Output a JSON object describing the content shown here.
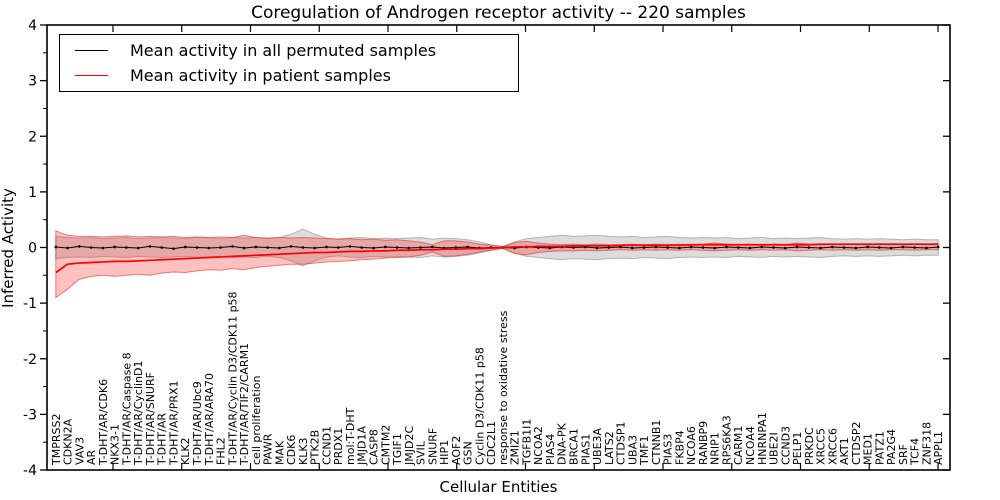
{
  "title": "Coregulation of Androgen receptor activity -- 220 samples",
  "axes": {
    "ylabel": "Inferred Activity",
    "xlabel": "Cellular Entities",
    "ytick_labels": [
      "4",
      "3",
      "2",
      "1",
      "0",
      "-1",
      "-2",
      "-3",
      "-4"
    ],
    "ylim": [
      -4,
      4
    ]
  },
  "legend": {
    "items": [
      {
        "label": "Mean activity in all permuted samples",
        "color": "#000000"
      },
      {
        "label": "Mean activity in patient samples",
        "color": "#ff0000"
      }
    ]
  },
  "chart_data": {
    "type": "line",
    "title": "Coregulation of Androgen receptor activity -- 220 samples",
    "xlabel": "Cellular Entities",
    "ylabel": "Inferred Activity",
    "ylim": [
      -4,
      4
    ],
    "grid": false,
    "legend_position": "upper left",
    "categories": [
      "TMPRSS2",
      "CDKN2A",
      "VAV3",
      "AR",
      "T-DHT/AR/CDK6",
      "NKX3-1",
      "T-DHT/AR/Caspase 8",
      "T-DHT/AR/CyclinD1",
      "T-DHT/AR/SNURF",
      "T-DHT/AR",
      "T-DHT/AR/PRX1",
      "KLK2",
      "T-DHT/AR/Ubc9",
      "T-DHT/AR/ARA70",
      "FHL2",
      "T-DHT/AR/Cyclin D3/CDK11 p58",
      "T-DHT/AR/TIF2/CARM1",
      "cell proliferation",
      "PAWR",
      "MAK",
      "CDK6",
      "KLK3",
      "PTK2B",
      "CCND1",
      "PRDX1",
      "mol:T-DHT",
      "JMJD1A",
      "CASP8",
      "CMTM2",
      "TGIF1",
      "JMJD2C",
      "SVIL",
      "SNURF",
      "HIP1",
      "AOF2",
      "GSN",
      "Cyclin D3/CDK11 p58",
      "CDC2L1",
      "response to oxidative stress",
      "ZMIZ1",
      "TGFB1I1",
      "NCOA2",
      "PIAS4",
      "DNA-PK",
      "BRCA1",
      "PIAS1",
      "UBE3A",
      "LATS2",
      "CTDSP1",
      "UBA3",
      "TMF1",
      "CTNNB1",
      "PIAS3",
      "FKBP4",
      "NCOA6",
      "RANBP9",
      "NRIP1",
      "RPS6KA3",
      "CARM1",
      "NCOA4",
      "HNRNPA1",
      "UBE2I",
      "CCND3",
      "PELP1",
      "PRKDC",
      "XRCC5",
      "XRCC6",
      "AKT1",
      "CTDSP2",
      "MED1",
      "PATZ1",
      "PA2G4",
      "SRF",
      "TCF4",
      "ZNF318",
      "APPL1"
    ],
    "series": [
      {
        "name": "Mean activity in all permuted samples",
        "color": "#000000",
        "markers": true,
        "values": [
          0.01,
          -0.01,
          0.02,
          0,
          -0.01,
          0.01,
          0,
          -0.01,
          0.02,
          0,
          -0.02,
          0.01,
          0,
          -0.01,
          0,
          0.02,
          -0.01,
          0.01,
          0,
          -0.01,
          0.02,
          0,
          -0.01,
          0.01,
          0,
          0.02,
          0,
          -0.01,
          0.01,
          0,
          -0.01,
          0,
          0.01,
          -0.01,
          0,
          0.01,
          -0.01,
          0,
          0,
          -0.01,
          0.01,
          0,
          -0.01,
          0.01,
          0,
          0.01,
          -0.01,
          0,
          0.01,
          -0.01,
          0,
          0.01,
          0,
          -0.01,
          0.01,
          0,
          -0.01,
          0.01,
          0,
          -0.01,
          0.01,
          0,
          -0.01,
          0.01,
          0,
          -0.01,
          0.01,
          0,
          -0.01,
          0.01,
          0,
          -0.01,
          0.01,
          0,
          -0.01,
          0.01
        ]
      },
      {
        "name": "Mean activity in patient samples",
        "color": "#ff0000",
        "markers": false,
        "values": [
          -0.45,
          -0.3,
          -0.28,
          -0.27,
          -0.26,
          -0.25,
          -0.25,
          -0.24,
          -0.23,
          -0.22,
          -0.21,
          -0.2,
          -0.19,
          -0.18,
          -0.17,
          -0.16,
          -0.15,
          -0.14,
          -0.13,
          -0.12,
          -0.11,
          -0.1,
          -0.09,
          -0.09,
          -0.08,
          -0.07,
          -0.07,
          -0.06,
          -0.06,
          -0.05,
          -0.05,
          -0.04,
          -0.04,
          -0.03,
          -0.03,
          -0.02,
          -0.02,
          -0.01,
          0,
          0.01,
          0.01,
          0.02,
          0.02,
          0.02,
          0.03,
          0.03,
          0.03,
          0.03,
          0.04,
          0.04,
          0.04,
          0.04,
          0.04,
          0.04,
          0.05,
          0.05,
          0.05,
          0.05,
          0.05,
          0.05,
          0.05,
          0.05,
          0.05,
          0.05,
          0.05,
          0.06,
          0.06,
          0.06,
          0.06,
          0.06,
          0.06,
          0.06,
          0.06,
          0.06,
          0.06,
          0.06
        ]
      }
    ],
    "bands": [
      {
        "name": "permuted-std",
        "fill": "rgba(128,128,128,0.28)",
        "stroke": "rgba(110,110,110,0.45)",
        "upper": [
          0.2,
          0.18,
          0.17,
          0.18,
          0.16,
          0.17,
          0.18,
          0.16,
          0.17,
          0.18,
          0.17,
          0.16,
          0.18,
          0.17,
          0.16,
          0.18,
          0.17,
          0.18,
          0.16,
          0.18,
          0.24,
          0.33,
          0.24,
          0.17,
          0.15,
          0.17,
          0.18,
          0.16,
          0.17,
          0.16,
          0.17,
          0.18,
          0.15,
          0.17,
          0.16,
          0.14,
          0.1,
          0.05,
          0.02,
          0.1,
          0.16,
          0.18,
          0.2,
          0.22,
          0.2,
          0.21,
          0.22,
          0.2,
          0.19,
          0.2,
          0.18,
          0.19,
          0.2,
          0.18,
          0.17,
          0.18,
          0.17,
          0.18,
          0.16,
          0.17,
          0.18,
          0.16,
          0.17,
          0.16,
          0.17,
          0.18,
          0.16,
          0.15,
          0.16,
          0.15,
          0.16,
          0.15,
          0.14,
          0.15,
          0.14,
          0.14
        ],
        "lower": [
          -0.2,
          -0.18,
          -0.17,
          -0.18,
          -0.16,
          -0.17,
          -0.18,
          -0.16,
          -0.17,
          -0.18,
          -0.17,
          -0.16,
          -0.18,
          -0.17,
          -0.16,
          -0.18,
          -0.17,
          -0.18,
          -0.16,
          -0.18,
          -0.24,
          -0.33,
          -0.24,
          -0.17,
          -0.15,
          -0.17,
          -0.18,
          -0.16,
          -0.17,
          -0.16,
          -0.17,
          -0.18,
          -0.15,
          -0.17,
          -0.16,
          -0.14,
          -0.1,
          -0.05,
          -0.02,
          -0.1,
          -0.16,
          -0.18,
          -0.2,
          -0.22,
          -0.2,
          -0.21,
          -0.22,
          -0.2,
          -0.19,
          -0.2,
          -0.18,
          -0.19,
          -0.2,
          -0.18,
          -0.17,
          -0.18,
          -0.17,
          -0.18,
          -0.16,
          -0.17,
          -0.18,
          -0.16,
          -0.17,
          -0.16,
          -0.17,
          -0.18,
          -0.16,
          -0.15,
          -0.16,
          -0.15,
          -0.16,
          -0.15,
          -0.14,
          -0.15,
          -0.14,
          -0.14
        ]
      },
      {
        "name": "patient-std",
        "fill": "rgba(255,45,45,0.30)",
        "stroke": "rgba(225,35,35,0.55)",
        "upper": [
          0.3,
          0.22,
          0.2,
          0.2,
          0.19,
          0.2,
          0.21,
          0.19,
          0.2,
          0.19,
          0.2,
          0.18,
          0.19,
          0.18,
          0.19,
          0.18,
          0.22,
          0.18,
          0.17,
          0.18,
          0.17,
          0.18,
          0.17,
          0.16,
          0.15,
          0.16,
          0.14,
          0.15,
          0.13,
          0.14,
          0.12,
          0.1,
          0.05,
          0.12,
          0.12,
          0.1,
          0.06,
          0.04,
          0.01,
          0.09,
          0.11,
          0.08,
          0.06,
          0.05,
          0.06,
          0.05,
          0.06,
          0.05,
          0.05,
          0.06,
          0.05,
          0.06,
          0.05,
          0.06,
          0.05,
          0.06,
          0.08,
          0.06,
          0.05,
          0.06,
          0.05,
          0.06,
          0.05,
          0.08,
          0.06,
          0.05,
          0.06,
          0.05,
          0.06,
          0.05,
          0.07,
          0.06,
          0.05,
          0.06,
          0.06,
          0.07
        ],
        "lower": [
          -0.9,
          -0.75,
          -0.57,
          -0.52,
          -0.5,
          -0.52,
          -0.5,
          -0.48,
          -0.5,
          -0.46,
          -0.44,
          -0.45,
          -0.42,
          -0.4,
          -0.41,
          -0.38,
          -0.4,
          -0.36,
          -0.34,
          -0.32,
          -0.3,
          -0.3,
          -0.28,
          -0.26,
          -0.25,
          -0.24,
          -0.22,
          -0.21,
          -0.19,
          -0.18,
          -0.17,
          -0.14,
          -0.08,
          -0.16,
          -0.15,
          -0.12,
          -0.08,
          -0.05,
          -0.01,
          -0.11,
          -0.13,
          -0.09,
          -0.07,
          -0.06,
          -0.06,
          -0.05,
          -0.06,
          -0.05,
          -0.04,
          -0.05,
          -0.04,
          -0.05,
          -0.04,
          -0.05,
          -0.04,
          -0.05,
          -0.06,
          -0.05,
          -0.04,
          -0.05,
          -0.04,
          -0.05,
          -0.04,
          -0.06,
          -0.05,
          -0.04,
          -0.05,
          -0.04,
          -0.05,
          -0.04,
          -0.05,
          -0.04,
          -0.04,
          -0.05,
          -0.04,
          -0.04
        ]
      }
    ]
  }
}
